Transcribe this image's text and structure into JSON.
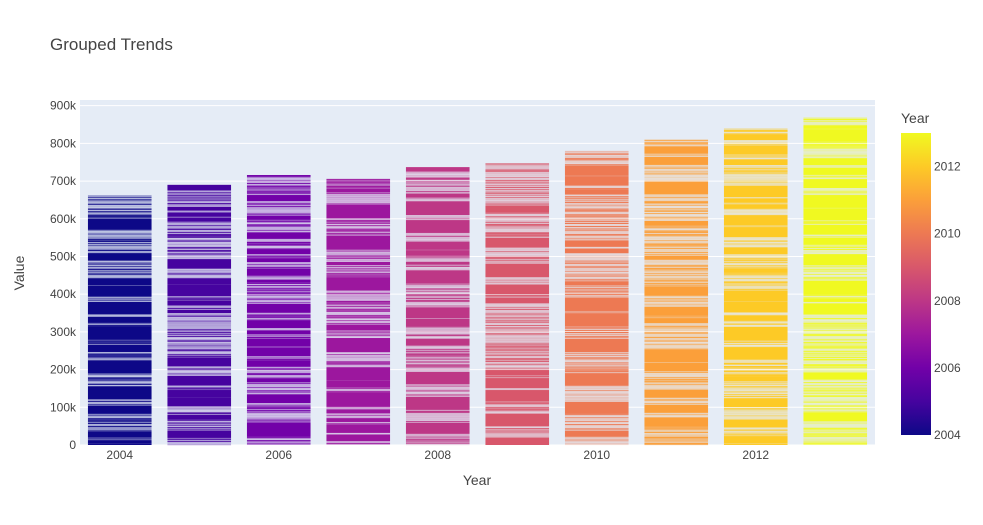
{
  "chart_data": {
    "type": "bar",
    "barmode": "stacked",
    "title": "Grouped Trends",
    "xlabel": "Year",
    "ylabel": "Value",
    "x": [
      2004,
      2005,
      2006,
      2007,
      2008,
      2009,
      2010,
      2011,
      2012,
      2013
    ],
    "totals": [
      662000,
      690000,
      716000,
      706000,
      737000,
      747000,
      780000,
      810000,
      840000,
      868000
    ],
    "xticks": [
      2004,
      2006,
      2008,
      2010,
      2012
    ],
    "xtick_labels": [
      "2004",
      "2006",
      "2008",
      "2010",
      "2012"
    ],
    "ylim": [
      0,
      915000
    ],
    "yticks": [
      0,
      100000,
      200000,
      300000,
      400000,
      500000,
      600000,
      700000,
      800000,
      900000
    ],
    "ytick_labels": [
      "0",
      "100k",
      "200k",
      "300k",
      "400k",
      "500k",
      "600k",
      "700k",
      "800k",
      "900k"
    ],
    "grid": true,
    "colorbar": {
      "title": "Year",
      "range": [
        2004,
        2013
      ],
      "ticks": [
        2004,
        2006,
        2008,
        2010,
        2012
      ],
      "tick_labels": [
        "2004",
        "2006",
        "2008",
        "2010",
        "2012"
      ],
      "colors": [
        "#0d0887",
        "#46039f",
        "#7201a8",
        "#9c179e",
        "#bd3786",
        "#d8576b",
        "#ed7953",
        "#fb9f3a",
        "#fdca26",
        "#f0f921"
      ]
    },
    "plot_background": "#e5ecf6"
  }
}
